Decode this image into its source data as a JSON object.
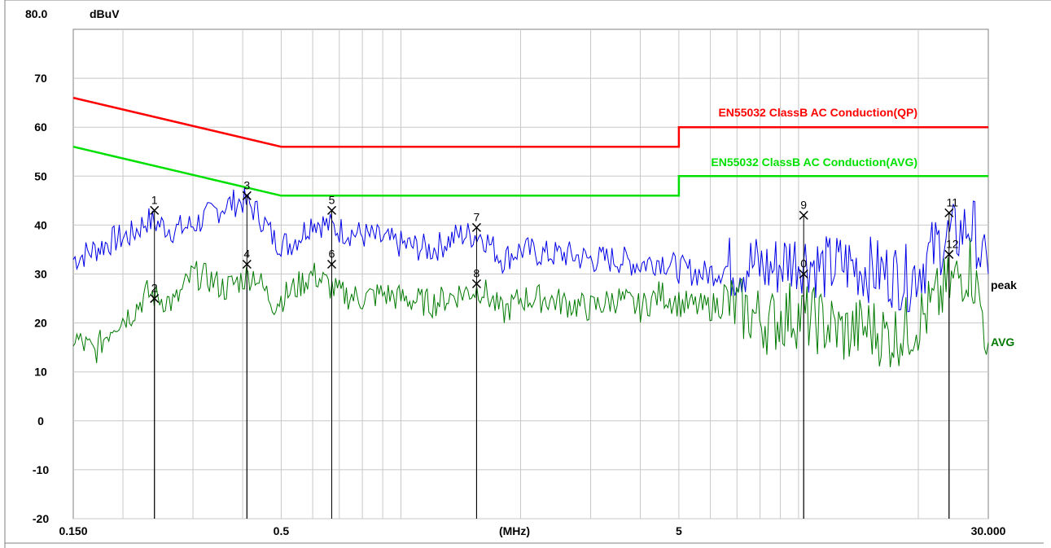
{
  "chart_data": {
    "type": "line",
    "x_scale": "log",
    "xlim": [
      0.15,
      30
    ],
    "ylim": [
      -20,
      80
    ],
    "ylabel": "dBuV",
    "ymax_label": "80.0",
    "xlabel": "(MHz)",
    "x_ticks": [
      {
        "value": 0.15,
        "label": "0.150"
      },
      {
        "value": 0.5,
        "label": "0.5"
      },
      {
        "value": 5,
        "label": "5"
      },
      {
        "value": 30,
        "label": "30.000"
      }
    ],
    "y_ticks": [
      70,
      60,
      50,
      40,
      30,
      20,
      10,
      0,
      -10,
      -20
    ],
    "grid": true,
    "limits": [
      {
        "name": "EN55032 ClassB AC Conduction(QP)",
        "color": "#ff0000",
        "points": [
          [
            0.15,
            66
          ],
          [
            0.5,
            56
          ],
          [
            5,
            56
          ],
          [
            5,
            60
          ],
          [
            30,
            60
          ]
        ]
      },
      {
        "name": "EN55032 ClassB AC Conduction(AVG)",
        "color": "#00e000",
        "points": [
          [
            0.15,
            56
          ],
          [
            0.5,
            46
          ],
          [
            5,
            46
          ],
          [
            5,
            50
          ],
          [
            30,
            50
          ]
        ]
      }
    ],
    "series": [
      {
        "name": "peak",
        "color": "#0000e6",
        "x": [
          0.15,
          0.17,
          0.19,
          0.21,
          0.23,
          0.25,
          0.27,
          0.3,
          0.33,
          0.36,
          0.4,
          0.43,
          0.45,
          0.48,
          0.52,
          0.56,
          0.6,
          0.65,
          0.7,
          0.8,
          0.9,
          1.0,
          1.2,
          1.4,
          1.6,
          1.8,
          2.0,
          2.3,
          2.6,
          3.0,
          3.5,
          4.0,
          4.5,
          5.0,
          5.8,
          6.5,
          7.5,
          8.5,
          9.5,
          10.5,
          11.5,
          13,
          15,
          17,
          19,
          21,
          23,
          25,
          27,
          28,
          29,
          30
        ],
        "y": [
          33,
          35,
          37,
          38,
          41,
          40,
          39,
          40,
          42,
          44,
          45,
          43,
          41,
          37,
          36,
          38,
          41,
          40,
          39,
          38,
          37,
          36,
          35,
          38,
          38,
          33,
          35,
          34,
          34,
          33,
          33,
          32,
          33,
          31,
          30,
          31,
          32,
          31,
          33,
          33,
          31,
          32,
          31,
          30,
          29,
          33,
          37,
          38,
          40,
          38,
          32,
          30
        ]
      },
      {
        "name": "AVG",
        "color": "#007a00",
        "x": [
          0.15,
          0.17,
          0.19,
          0.21,
          0.23,
          0.25,
          0.27,
          0.3,
          0.33,
          0.36,
          0.4,
          0.43,
          0.45,
          0.48,
          0.52,
          0.56,
          0.6,
          0.65,
          0.7,
          0.8,
          0.9,
          1.0,
          1.2,
          1.4,
          1.6,
          1.8,
          2.0,
          2.3,
          2.6,
          3.0,
          3.5,
          4.0,
          4.5,
          5.0,
          5.8,
          6.5,
          7.5,
          8.5,
          9.5,
          10.5,
          11.5,
          13,
          15,
          17,
          19,
          21,
          23,
          25,
          27,
          28,
          29,
          30
        ],
        "y": [
          17,
          14,
          20,
          22,
          26,
          25,
          24,
          30,
          29,
          27,
          29,
          30,
          27,
          24,
          26,
          28,
          30,
          28,
          26,
          25,
          26,
          25,
          24,
          26,
          27,
          22,
          25,
          25,
          24,
          23,
          25,
          23,
          26,
          24,
          23,
          24,
          22,
          20,
          22,
          21,
          20,
          18,
          19,
          17,
          19,
          22,
          26,
          29,
          32,
          27,
          22,
          16
        ]
      }
    ],
    "markers": [
      {
        "label": "1",
        "x": 0.24,
        "y": 43
      },
      {
        "label": "2",
        "x": 0.24,
        "y": 25
      },
      {
        "label": "3",
        "x": 0.41,
        "y": 46
      },
      {
        "label": "4",
        "x": 0.41,
        "y": 32
      },
      {
        "label": "5",
        "x": 0.67,
        "y": 43
      },
      {
        "label": "6",
        "x": 0.67,
        "y": 32
      },
      {
        "label": "7",
        "x": 1.55,
        "y": 39.5
      },
      {
        "label": "8",
        "x": 1.55,
        "y": 28
      },
      {
        "label": "9",
        "x": 10.3,
        "y": 42
      },
      {
        "label": "0",
        "x": 10.3,
        "y": 30
      },
      {
        "label": "11",
        "x": 23.9,
        "y": 42.5
      },
      {
        "label": "12",
        "x": 23.9,
        "y": 34
      }
    ]
  }
}
